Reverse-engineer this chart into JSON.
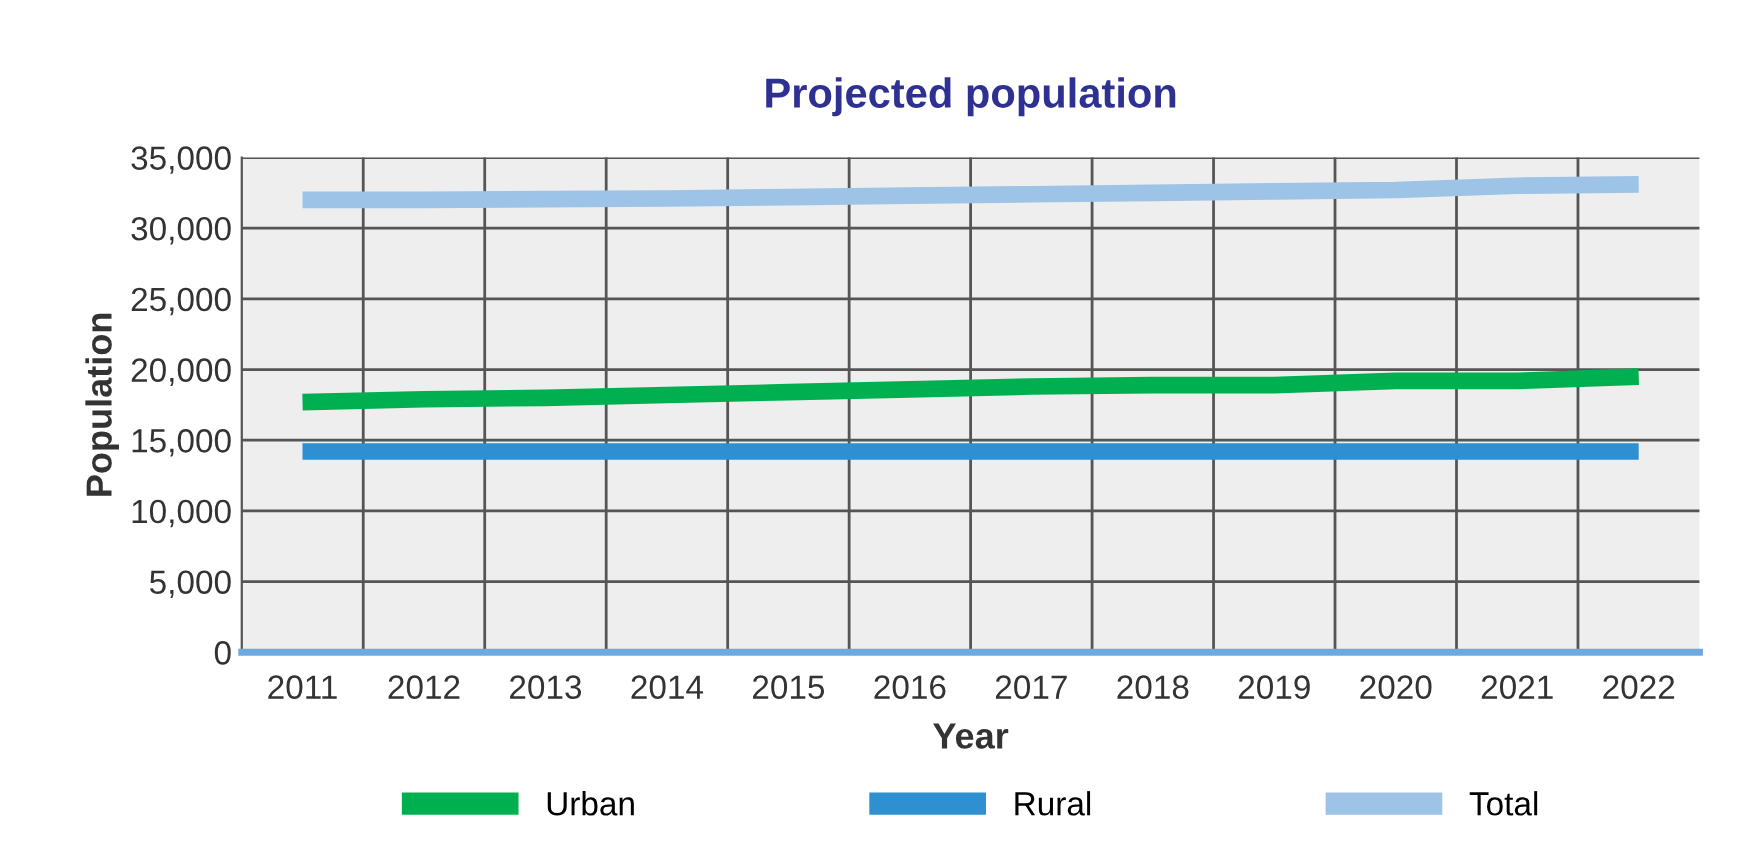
{
  "chart_data": {
    "type": "line",
    "title": "Projected population",
    "xlabel": "Year",
    "ylabel": "Population",
    "categories": [
      "2011",
      "2012",
      "2013",
      "2014",
      "2015",
      "2016",
      "2017",
      "2018",
      "2019",
      "2020",
      "2021",
      "2022"
    ],
    "series": [
      {
        "name": "Urban",
        "color": "#00b050",
        "values": [
          17700,
          17900,
          18000,
          18200,
          18400,
          18600,
          18800,
          18900,
          18900,
          19200,
          19200,
          19500
        ]
      },
      {
        "name": "Rural",
        "color": "#2e90d0",
        "values": [
          14200,
          14200,
          14200,
          14200,
          14200,
          14200,
          14200,
          14200,
          14200,
          14200,
          14200,
          14200
        ]
      },
      {
        "name": "Total",
        "color": "#9dc3e6",
        "values": [
          32000,
          32000,
          32050,
          32100,
          32200,
          32300,
          32400,
          32500,
          32600,
          32700,
          33000,
          33100
        ]
      }
    ],
    "ylim": [
      0,
      35000
    ],
    "yticks": [
      {
        "value": 0,
        "label": "0"
      },
      {
        "value": 5000,
        "label": "5,000"
      },
      {
        "value": 10000,
        "label": "10,000"
      },
      {
        "value": 15000,
        "label": "15,000"
      },
      {
        "value": 20000,
        "label": "20,000"
      },
      {
        "value": 25000,
        "label": "25,000"
      },
      {
        "value": 30000,
        "label": "30,000"
      },
      {
        "value": 35000,
        "label": "35,000"
      }
    ],
    "grid": true,
    "legend": "bottom",
    "marker": "none",
    "line_style": "solid"
  }
}
